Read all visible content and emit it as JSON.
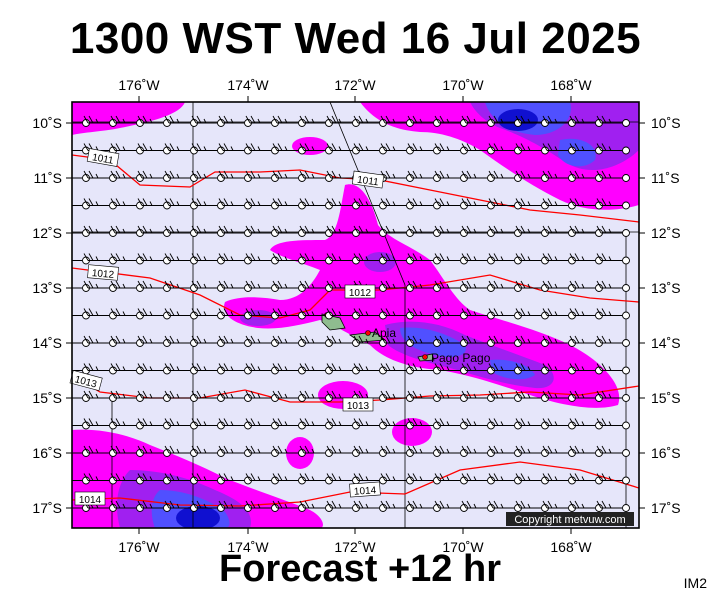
{
  "title": "1300 WST Wed 16 Jul 2025",
  "subtitle": "Forecast +12 hr",
  "panel_id": "IM2",
  "copyright": "Copyright metvuw.com",
  "colors": {
    "background": "#e6e6fa",
    "magenta": "#ff00ff",
    "violet": "#a020f0",
    "blue": "#5050ff",
    "deep_blue": "#1010d0",
    "isobar": "#ff0000",
    "frame": "#000000"
  },
  "longitude_labels": [
    "176˚W",
    "174˚W",
    "172˚W",
    "170˚W",
    "168˚W"
  ],
  "latitude_labels": [
    "10˚S",
    "11˚S",
    "12˚S",
    "13˚S",
    "14˚S",
    "15˚S",
    "16˚S",
    "17˚S"
  ],
  "isobars": [
    {
      "label": "1011",
      "label2": "1011"
    },
    {
      "label": "1012",
      "label2": "1012"
    },
    {
      "label": "1013",
      "label2": "1013"
    },
    {
      "label": "1014",
      "label2": "1014"
    }
  ],
  "places": [
    {
      "name": "Apia"
    },
    {
      "name": "Pago Pago"
    }
  ]
}
